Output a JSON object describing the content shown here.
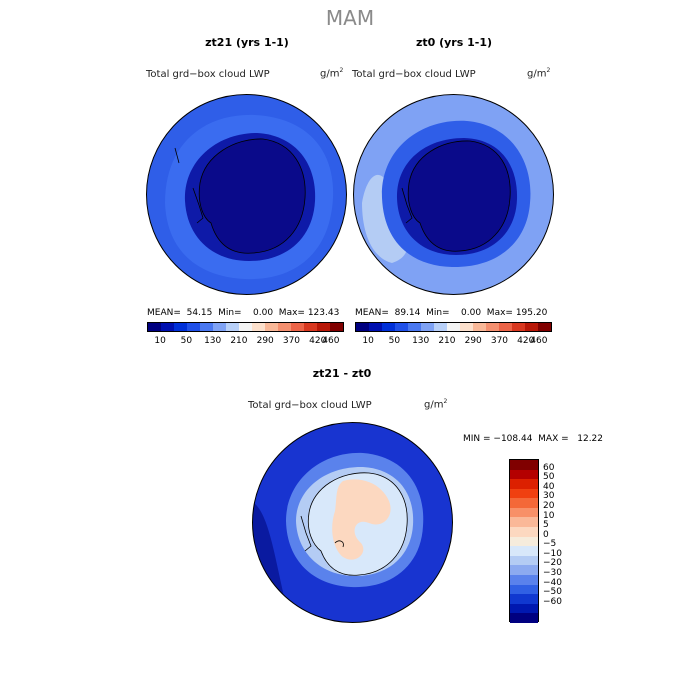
{
  "season_title": "MAM",
  "panels": [
    {
      "title": "zt21 (yrs 1-1)",
      "variable": "Total grd−box cloud LWP",
      "units_base": "g/m",
      "units_exp": "2",
      "stats": "MEAN=  54.15  Min=    0.00  Max= 123.43"
    },
    {
      "title": "zt0 (yrs 1-1)",
      "variable": "Total grd−box cloud LWP",
      "units_base": "g/m",
      "units_exp": "2",
      "stats": "MEAN=  89.14  Min=    0.00  Max= 195.20"
    }
  ],
  "abs_colorbar": {
    "colors": [
      "#000080",
      "#0010b0",
      "#0030d8",
      "#2050e8",
      "#4a78f0",
      "#7fa2f4",
      "#b8d0f8",
      "#f4f4f4",
      "#fce0cc",
      "#f9b898",
      "#f49070",
      "#ec6448",
      "#d83820",
      "#b81808",
      "#800000"
    ],
    "labels": [
      "10",
      "50",
      "130",
      "210",
      "290",
      "370",
      "420",
      "460"
    ]
  },
  "diff_panel": {
    "title": "zt21 - zt0",
    "variable": "Total grd−box cloud LWP",
    "units_base": "g/m",
    "units_exp": "2",
    "minmax": "MIN = −108.44  MAX =   12.22"
  },
  "diff_colorbar": {
    "colors": [
      "#800000",
      "#b40000",
      "#dc2000",
      "#f04010",
      "#f46838",
      "#f89068",
      "#fab898",
      "#fcd8c0",
      "#f6ecdc",
      "#d8e8fa",
      "#b4ccf4",
      "#8caaf0",
      "#5a82ec",
      "#3060e4",
      "#1038d0",
      "#0018b0",
      "#000080"
    ],
    "labels": [
      "60",
      "50",
      "40",
      "30",
      "20",
      "10",
      "5",
      "0",
      "−5",
      "−10",
      "−20",
      "−30",
      "−40",
      "−50",
      "−60"
    ]
  },
  "map_colors": {
    "panel1_ocean": "#2f5ee8",
    "panel1_band": "#3a6cf0",
    "panel1_ice": "#0a0a8a",
    "panel1_coast": "#0e1aa8",
    "panel2_ocean": "#7fa2f4",
    "panel2_band": "#2f5ee8",
    "panel2_ice": "#0a0a8a",
    "diff_ocean": "#1834d0",
    "diff_dark": "#0a1aa0",
    "diff_light": "#b4ccf4",
    "diff_ice": "#d8e8fa",
    "diff_warm": "#fcd8c0"
  }
}
